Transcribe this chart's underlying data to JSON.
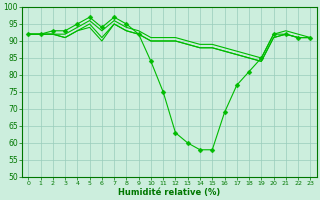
{
  "xlabel": "Humidité relative (%)",
  "background_color": "#cceedd",
  "grid_color": "#99ccbb",
  "line_color": "#00bb00",
  "marker": "D",
  "marker_size": 2.5,
  "xlim_min": -0.5,
  "xlim_max": 23.5,
  "ylim_min": 50,
  "ylim_max": 100,
  "yticks": [
    50,
    55,
    60,
    65,
    70,
    75,
    80,
    85,
    90,
    95,
    100
  ],
  "xticks": [
    0,
    1,
    2,
    3,
    4,
    5,
    6,
    7,
    8,
    9,
    10,
    11,
    12,
    13,
    14,
    15,
    16,
    17,
    18,
    19,
    20,
    21,
    22,
    23
  ],
  "series": [
    [
      92,
      92,
      93,
      93,
      95,
      97,
      94,
      97,
      95,
      92,
      84,
      75,
      63,
      60,
      58,
      58,
      69,
      77,
      81,
      85,
      92,
      92,
      91,
      91
    ],
    [
      92,
      92,
      92,
      92,
      94,
      96,
      93,
      96,
      94,
      93,
      91,
      91,
      91,
      90,
      89,
      89,
      88,
      87,
      86,
      85,
      92,
      93,
      92,
      91
    ],
    [
      92,
      92,
      92,
      91,
      93,
      95,
      91,
      95,
      93,
      92,
      90,
      90,
      90,
      89,
      88,
      88,
      87,
      86,
      85,
      84,
      91,
      92,
      91,
      91
    ],
    [
      92,
      92,
      92,
      91,
      93,
      94,
      90,
      95,
      93,
      92,
      90,
      90,
      90,
      89,
      88,
      88,
      87,
      86,
      85,
      84,
      91,
      92,
      91,
      91
    ]
  ],
  "series_has_marker": [
    true,
    false,
    false,
    false
  ]
}
